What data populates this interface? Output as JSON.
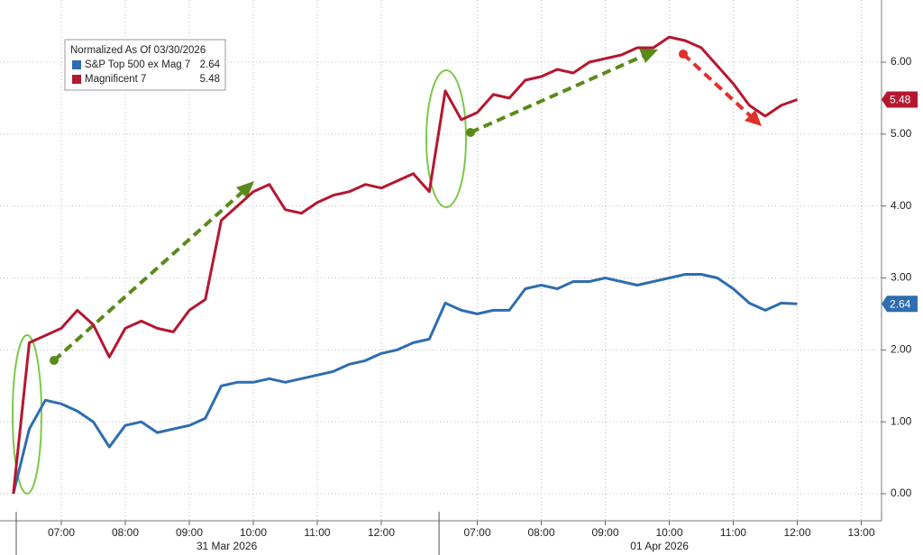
{
  "chart_data": {
    "type": "line",
    "legend_title": "Normalized As Of 03/30/2026",
    "categories": [
      null,
      null,
      null,
      "07:00",
      null,
      null,
      null,
      "08:00",
      null,
      null,
      null,
      "09:00",
      null,
      null,
      null,
      "10:00",
      null,
      null,
      null,
      "11:00",
      null,
      null,
      null,
      "12:00",
      null,
      null,
      null,
      null,
      null,
      "07:00",
      null,
      null,
      null,
      "08:00",
      null,
      null,
      null,
      "09:00",
      null,
      null,
      null,
      "10:00",
      null,
      null,
      null,
      "11:00",
      null,
      null,
      null,
      "12:00",
      null,
      null,
      null,
      "13:00"
    ],
    "date_labels": [
      "31 Mar 2026",
      "01 Apr 2026"
    ],
    "series": [
      {
        "name": "S&P Top 500 ex Mag 7",
        "color": "#2e6db0",
        "values": [
          0.0,
          0.9,
          1.3,
          1.25,
          1.15,
          1.0,
          0.65,
          0.95,
          1.0,
          0.85,
          0.9,
          0.95,
          1.05,
          1.5,
          1.55,
          1.55,
          1.6,
          1.55,
          1.6,
          1.65,
          1.7,
          1.8,
          1.85,
          1.95,
          2.0,
          2.1,
          2.15,
          2.65,
          2.55,
          2.5,
          2.55,
          2.55,
          2.85,
          2.9,
          2.85,
          2.95,
          2.95,
          3.0,
          2.95,
          2.9,
          2.95,
          3.0,
          3.05,
          3.05,
          3.0,
          2.85,
          2.65,
          2.55,
          2.65,
          2.64,
          null,
          null,
          null,
          null
        ]
      },
      {
        "name": "Magnificent 7",
        "color": "#b5172f",
        "values": [
          0.0,
          2.1,
          2.2,
          2.3,
          2.55,
          2.35,
          1.9,
          2.3,
          2.4,
          2.3,
          2.25,
          2.55,
          2.7,
          3.8,
          4.0,
          4.2,
          4.3,
          3.95,
          3.9,
          4.05,
          4.15,
          4.2,
          4.3,
          4.25,
          4.35,
          4.45,
          4.2,
          5.6,
          5.2,
          5.3,
          5.55,
          5.5,
          5.75,
          5.8,
          5.9,
          5.85,
          6.0,
          6.05,
          6.1,
          6.2,
          6.2,
          6.35,
          6.3,
          6.2,
          5.95,
          5.7,
          5.4,
          5.25,
          5.4,
          5.48,
          null,
          null,
          null,
          null
        ]
      }
    ],
    "ylim": [
      -0.38,
      6.87
    ],
    "yticks": [
      {
        "value": 0,
        "label": "0.00"
      },
      {
        "value": 1,
        "label": "1.00"
      },
      {
        "value": 2,
        "label": "2.00"
      },
      {
        "value": 3,
        "label": "3.00"
      },
      {
        "value": 4,
        "label": "4.00"
      },
      {
        "value": 5,
        "label": "5.00"
      },
      {
        "value": 6,
        "label": "6.00"
      }
    ],
    "grid": true
  }
}
